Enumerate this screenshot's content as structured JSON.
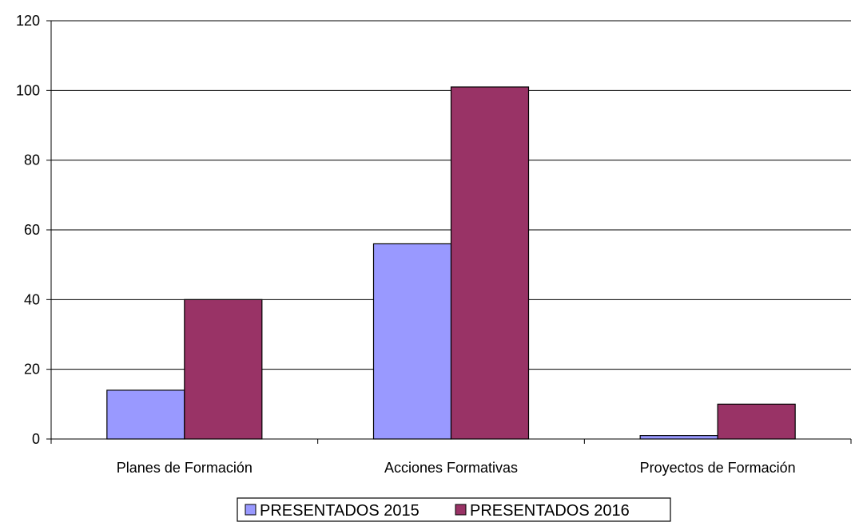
{
  "chart_data": {
    "type": "bar",
    "categories": [
      "Planes de Formación",
      "Acciones Formativas",
      "Proyectos de Formación"
    ],
    "series": [
      {
        "name": "PRESENTADOS 2015",
        "color": "#9999ff",
        "values": [
          14,
          56,
          1
        ]
      },
      {
        "name": "PRESENTADOS 2016",
        "color": "#993366",
        "values": [
          40,
          101,
          10
        ]
      }
    ],
    "ylim": [
      0,
      120
    ],
    "yticks": [
      0,
      20,
      40,
      60,
      80,
      100,
      120
    ],
    "ytick_labels": [
      "0",
      "20",
      "40",
      "60",
      "80",
      "100",
      "120"
    ],
    "grid": true,
    "legend_position": "bottom-center",
    "title": "",
    "xlabel": "",
    "ylabel": ""
  }
}
